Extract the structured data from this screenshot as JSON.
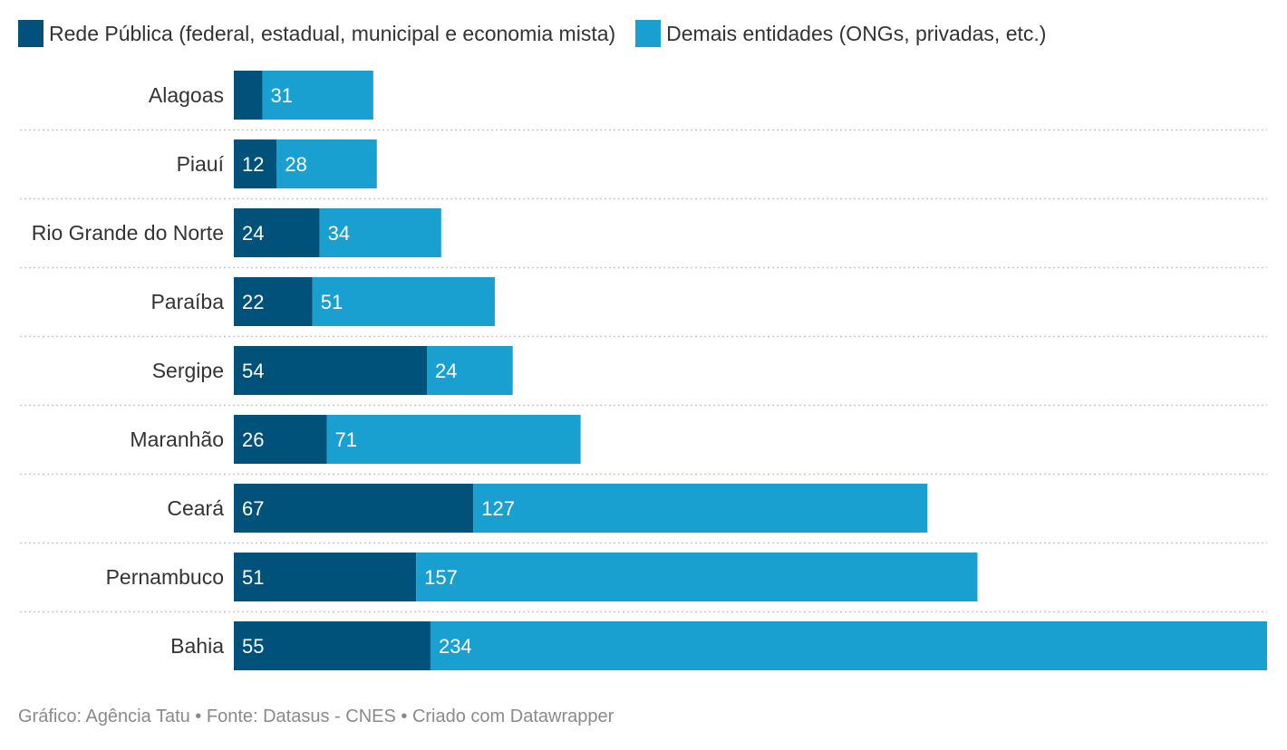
{
  "colors": {
    "public": "#00527a",
    "other": "#19a0d0",
    "divider": "#c8c8c8",
    "category_text": "#333333",
    "bar_label_text": "#ffffff"
  },
  "chart_data": {
    "type": "bar",
    "orientation": "horizontal",
    "stacked": true,
    "categories": [
      "Alagoas",
      "Piauí",
      "Rio Grande do Norte",
      "Paraíba",
      "Sergipe",
      "Maranhão",
      "Ceará",
      "Pernambuco",
      "Bahia"
    ],
    "series": [
      {
        "name": "Rede Pública (federal, estadual, municipal e economia mista)",
        "values": [
          8,
          12,
          24,
          22,
          54,
          26,
          67,
          51,
          55
        ],
        "labels": [
          "",
          "12",
          "24",
          "22",
          "54",
          "26",
          "67",
          "51",
          "55"
        ]
      },
      {
        "name": "Demais entidades (ONGs, privadas, etc.)",
        "values": [
          31,
          28,
          34,
          51,
          24,
          71,
          127,
          157,
          234
        ],
        "labels": [
          "31",
          "28",
          "34",
          "51",
          "24",
          "71",
          "127",
          "157",
          "234"
        ]
      }
    ],
    "xlim": [
      0,
      289
    ],
    "grid": false,
    "legend_position": "top-left"
  },
  "footer": "Gráfico: Agência Tatu • Fonte: Datasus - CNES • Criado com Datawrapper"
}
